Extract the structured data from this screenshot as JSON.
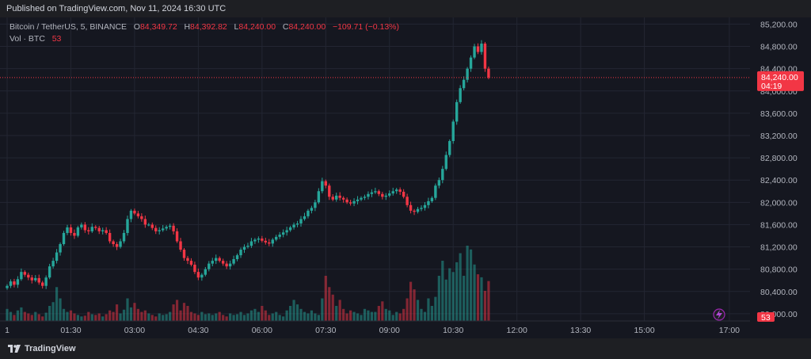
{
  "header": {
    "published": "Published on TradingView.com, Nov 11, 2024 16:30 UTC"
  },
  "legend": {
    "symbol": "Bitcoin / TetherUS, 5, BINANCE",
    "o_label": "O",
    "o_value": "84,349.72",
    "h_label": "H",
    "h_value": "84,392.82",
    "l_label": "L",
    "l_value": "84,240.00",
    "c_label": "C",
    "c_value": "84,240.00",
    "change": "−109.71 (−0.13%)",
    "vol_label": "Vol · BTC",
    "vol_value": "53"
  },
  "price_tag": {
    "price": "84,240.00",
    "countdown": "04:19"
  },
  "volume_tag": "53",
  "footer": {
    "brand": "TradingView"
  },
  "colors": {
    "up": "#26a69a",
    "down": "#f23645",
    "grid": "#232632",
    "axis_text": "#b2b5be"
  },
  "icons": {
    "lightning": "lightning-icon",
    "logo": "tradingview-logo-icon"
  },
  "chart_data": {
    "type": "candlestick",
    "title": "Bitcoin / TetherUS, 5, BINANCE",
    "interval": "5",
    "last_price": 84240.0,
    "y_ticks": [
      80000,
      80400,
      80800,
      81200,
      81600,
      82000,
      82400,
      82800,
      83200,
      83600,
      84000,
      84400,
      84800,
      85200
    ],
    "y_tick_labels": [
      "80,000.00",
      "80,400.00",
      "80,800.00",
      "81,200.00",
      "81,600.00",
      "82,000.00",
      "82,400.00",
      "82,800.00",
      "83,200.00",
      "83,600.00",
      "84,000.00",
      "84,400.00",
      "84,800.00",
      "85,200.00"
    ],
    "ylim": [
      79870,
      85320
    ],
    "x_ticks": [
      "1",
      "01:30",
      "03:00",
      "04:30",
      "06:00",
      "07:30",
      "09:00",
      "10:30",
      "12:00",
      "13:30",
      "15:00",
      "17:00"
    ],
    "x_tick_index": [
      0,
      18,
      36,
      54,
      72,
      90,
      108,
      126,
      144,
      162,
      180,
      204
    ],
    "closes": [
      80500,
      80580,
      80520,
      80620,
      80750,
      80700,
      80650,
      80600,
      80640,
      80560,
      80500,
      80650,
      80850,
      80950,
      81100,
      81250,
      81450,
      81550,
      81450,
      81400,
      81550,
      81600,
      81500,
      81480,
      81560,
      81540,
      81480,
      81500,
      81450,
      81300,
      81250,
      81200,
      81300,
      81450,
      81700,
      81850,
      81800,
      81750,
      81700,
      81600,
      81600,
      81540,
      81480,
      81500,
      81530,
      81560,
      81580,
      81480,
      81300,
      81150,
      81000,
      80950,
      80880,
      80750,
      80650,
      80700,
      80800,
      80900,
      80950,
      81000,
      80950,
      80900,
      80850,
      80900,
      80980,
      81050,
      81150,
      81200,
      81220,
      81300,
      81330,
      81350,
      81310,
      81280,
      81260,
      81330,
      81380,
      81420,
      81460,
      81500,
      81550,
      81600,
      81620,
      81700,
      81750,
      81850,
      81900,
      82000,
      82200,
      82380,
      82300,
      82100,
      82050,
      82120,
      82080,
      82050,
      82000,
      81980,
      82020,
      82050,
      82080,
      82100,
      82150,
      82180,
      82200,
      82150,
      82100,
      82120,
      82160,
      82200,
      82230,
      82190,
      82100,
      81950,
      81850,
      81830,
      81880,
      81900,
      81950,
      82020,
      82080,
      82300,
      82400,
      82600,
      82850,
      83100,
      83450,
      83800,
      84050,
      84200,
      84400,
      84600,
      84800,
      84700,
      84850,
      84400,
      84240
    ],
    "volumes": [
      16,
      12,
      8,
      14,
      18,
      12,
      10,
      8,
      12,
      9,
      6,
      11,
      20,
      25,
      45,
      30,
      16,
      12,
      14,
      10,
      8,
      6,
      7,
      12,
      9,
      8,
      10,
      6,
      9,
      14,
      12,
      22,
      10,
      15,
      30,
      18,
      24,
      16,
      12,
      14,
      10,
      8,
      6,
      10,
      8,
      9,
      12,
      22,
      28,
      14,
      24,
      20,
      12,
      10,
      8,
      12,
      9,
      10,
      8,
      10,
      12,
      8,
      6,
      10,
      8,
      9,
      12,
      8,
      10,
      14,
      16,
      12,
      20,
      14,
      8,
      10,
      12,
      8,
      6,
      14,
      20,
      28,
      22,
      16,
      12,
      10,
      14,
      10,
      8,
      30,
      60,
      45,
      35,
      20,
      28,
      16,
      10,
      14,
      12,
      10,
      8,
      16,
      14,
      12,
      12,
      20,
      26,
      16,
      14,
      8,
      12,
      10,
      16,
      30,
      52,
      42,
      28,
      16,
      12,
      30,
      20,
      32,
      60,
      80,
      55,
      70,
      65,
      78,
      90,
      60,
      100,
      95,
      75,
      62,
      58,
      40,
      53
    ]
  }
}
